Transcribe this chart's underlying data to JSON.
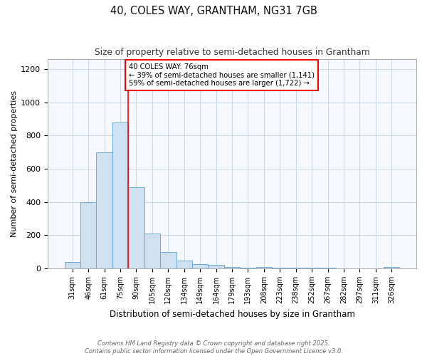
{
  "title": "40, COLES WAY, GRANTHAM, NG31 7GB",
  "subtitle": "Size of property relative to semi-detached houses in Grantham",
  "xlabel": "Distribution of semi-detached houses by size in Grantham",
  "ylabel": "Number of semi-detached properties",
  "categories": [
    "31sqm",
    "46sqm",
    "61sqm",
    "75sqm",
    "90sqm",
    "105sqm",
    "120sqm",
    "134sqm",
    "149sqm",
    "164sqm",
    "179sqm",
    "193sqm",
    "208sqm",
    "223sqm",
    "238sqm",
    "252sqm",
    "267sqm",
    "282sqm",
    "297sqm",
    "311sqm",
    "326sqm"
  ],
  "values": [
    40,
    400,
    700,
    880,
    490,
    210,
    100,
    45,
    25,
    20,
    8,
    5,
    10,
    3,
    2,
    2,
    2,
    1,
    1,
    1,
    10
  ],
  "bar_color": "#cfe0f0",
  "bar_edge_color": "#6aaad4",
  "property_line_x": 3.5,
  "annotation_text_line1": "40 COLES WAY: 76sqm",
  "annotation_text_line2": "← 39% of semi-detached houses are smaller (1,141)",
  "annotation_text_line3": "59% of semi-detached houses are larger (1,722) →",
  "ylim": [
    0,
    1260
  ],
  "yticks": [
    0,
    200,
    400,
    600,
    800,
    1000,
    1200
  ],
  "footnote1": "Contains HM Land Registry data © Crown copyright and database right 2025.",
  "footnote2": "Contains public sector information licensed under the Open Government Licence v3.0.",
  "bg_color": "#ffffff",
  "plot_bg_color": "#f5f8ff",
  "grid_color": "#c8d8e8"
}
